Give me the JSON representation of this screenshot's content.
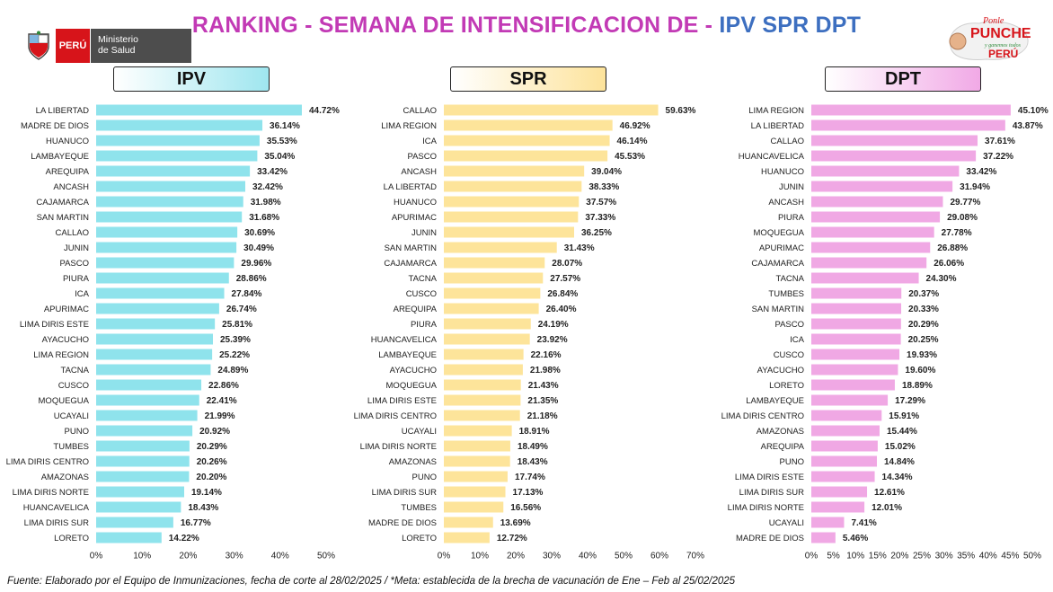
{
  "header": {
    "title_part1": "RANKING - SEMANA DE INTENSIFICACION DE - ",
    "title_part2": "IPV SPR DPT",
    "title_color1": "#c23ab5",
    "title_color2": "#3d6fc0"
  },
  "logos": {
    "peru": "PERÚ",
    "ministry_line1": "Ministerio",
    "ministry_line2": "de Salud",
    "campaign_line1": "Ponle",
    "campaign_line2": "PUNCHE",
    "campaign_line3": "y ganemos todos",
    "campaign_line4": "PERÚ"
  },
  "footer": "Fuente: Elaborado por el Equipo de Inmunizaciones, fecha de corte al 28/02/2025 / *Meta: establecida de la brecha de vacunación de Ene – Feb al 25/02/2025",
  "chart_data": [
    {
      "type": "bar",
      "orientation": "horizontal",
      "title": "IPV",
      "color": "#8fe3ec",
      "xlim": [
        0,
        50
      ],
      "ticks": [
        0,
        10,
        20,
        30,
        40,
        50
      ],
      "tick_labels": [
        "0%",
        "10%",
        "20%",
        "30%",
        "40%",
        "50%"
      ],
      "categories": [
        "LA LIBERTAD",
        "MADRE DE DIOS",
        "HUANUCO",
        "LAMBAYEQUE",
        "AREQUIPA",
        "ANCASH",
        "CAJAMARCA",
        "SAN MARTIN",
        "CALLAO",
        "JUNIN",
        "PASCO",
        "PIURA",
        "ICA",
        "APURIMAC",
        "LIMA DIRIS ESTE",
        "AYACUCHO",
        "LIMA REGION",
        "TACNA",
        "CUSCO",
        "MOQUEGUA",
        "UCAYALI",
        "PUNO",
        "TUMBES",
        "LIMA DIRIS CENTRO",
        "AMAZONAS",
        "LIMA DIRIS NORTE",
        "HUANCAVELICA",
        "LIMA DIRIS SUR",
        "LORETO"
      ],
      "values": [
        44.72,
        36.14,
        35.53,
        35.04,
        33.42,
        32.42,
        31.98,
        31.68,
        30.69,
        30.49,
        29.96,
        28.86,
        27.84,
        26.74,
        25.81,
        25.39,
        25.22,
        24.89,
        22.86,
        22.41,
        21.99,
        20.92,
        20.29,
        20.26,
        20.2,
        19.14,
        18.43,
        16.77,
        14.22
      ],
      "value_labels": [
        "44.72%",
        "36.14%",
        "35.53%",
        "35.04%",
        "33.42%",
        "32.42%",
        "31.98%",
        "31.68%",
        "30.69%",
        "30.49%",
        "29.96%",
        "28.86%",
        "27.84%",
        "26.74%",
        "25.81%",
        "25.39%",
        "25.22%",
        "24.89%",
        "22.86%",
        "22.41%",
        "21.99%",
        "20.92%",
        "20.29%",
        "20.26%",
        "20.20%",
        "19.14%",
        "18.43%",
        "16.77%",
        "14.22%"
      ]
    },
    {
      "type": "bar",
      "orientation": "horizontal",
      "title": "SPR",
      "color": "#fde49a",
      "xlim": [
        0,
        70
      ],
      "ticks": [
        0,
        10,
        20,
        30,
        40,
        50,
        60,
        70
      ],
      "tick_labels": [
        "0%",
        "10%",
        "20%",
        "30%",
        "40%",
        "50%",
        "60%",
        "70%"
      ],
      "categories": [
        "CALLAO",
        "LIMA REGION",
        "ICA",
        "PASCO",
        "ANCASH",
        "LA LIBERTAD",
        "HUANUCO",
        "APURIMAC",
        "JUNIN",
        "SAN MARTIN",
        "CAJAMARCA",
        "TACNA",
        "CUSCO",
        "AREQUIPA",
        "PIURA",
        "HUANCAVELICA",
        "LAMBAYEQUE",
        "AYACUCHO",
        "MOQUEGUA",
        "LIMA DIRIS ESTE",
        "LIMA DIRIS CENTRO",
        "UCAYALI",
        "LIMA DIRIS NORTE",
        "AMAZONAS",
        "PUNO",
        "LIMA DIRIS SUR",
        "TUMBES",
        "MADRE DE DIOS",
        "LORETO"
      ],
      "values": [
        59.63,
        46.92,
        46.14,
        45.53,
        39.04,
        38.33,
        37.57,
        37.33,
        36.25,
        31.43,
        28.07,
        27.57,
        26.84,
        26.4,
        24.19,
        23.92,
        22.16,
        21.98,
        21.43,
        21.35,
        21.18,
        18.91,
        18.49,
        18.43,
        17.74,
        17.13,
        16.56,
        13.69,
        12.72
      ],
      "value_labels": [
        "59.63%",
        "46.92%",
        "46.14%",
        "45.53%",
        "39.04%",
        "38.33%",
        "37.57%",
        "37.33%",
        "36.25%",
        "31.43%",
        "28.07%",
        "27.57%",
        "26.84%",
        "26.40%",
        "24.19%",
        "23.92%",
        "22.16%",
        "21.98%",
        "21.43%",
        "21.35%",
        "21.18%",
        "18.91%",
        "18.49%",
        "18.43%",
        "17.74%",
        "17.13%",
        "16.56%",
        "13.69%",
        "12.72%"
      ]
    },
    {
      "type": "bar",
      "orientation": "horizontal",
      "title": "DPT",
      "color": "#f0a8e4",
      "xlim": [
        0,
        50
      ],
      "ticks": [
        0,
        5,
        10,
        15,
        20,
        25,
        30,
        35,
        40,
        45,
        50
      ],
      "tick_labels": [
        "0%",
        "5%",
        "10%",
        "15%",
        "20%",
        "25%",
        "30%",
        "35%",
        "40%",
        "45%",
        "50%"
      ],
      "categories": [
        "LIMA REGION",
        "LA LIBERTAD",
        "CALLAO",
        "HUANCAVELICA",
        "HUANUCO",
        "JUNIN",
        "ANCASH",
        "PIURA",
        "MOQUEGUA",
        "APURIMAC",
        "CAJAMARCA",
        "TACNA",
        "TUMBES",
        "SAN MARTIN",
        "PASCO",
        "ICA",
        "CUSCO",
        "AYACUCHO",
        "LORETO",
        "LAMBAYEQUE",
        "LIMA DIRIS CENTRO",
        "AMAZONAS",
        "AREQUIPA",
        "PUNO",
        "LIMA DIRIS ESTE",
        "LIMA DIRIS SUR",
        "LIMA DIRIS NORTE",
        "UCAYALI",
        "MADRE DE DIOS"
      ],
      "values": [
        45.1,
        43.87,
        37.61,
        37.22,
        33.42,
        31.94,
        29.77,
        29.08,
        27.78,
        26.88,
        26.06,
        24.3,
        20.37,
        20.33,
        20.29,
        20.25,
        19.93,
        19.6,
        18.89,
        17.29,
        15.91,
        15.44,
        15.02,
        14.84,
        14.34,
        12.61,
        12.01,
        7.41,
        5.46
      ],
      "value_labels": [
        "45.10%",
        "43.87%",
        "37.61%",
        "37.22%",
        "33.42%",
        "31.94%",
        "29.77%",
        "29.08%",
        "27.78%",
        "26.88%",
        "26.06%",
        "24.30%",
        "20.37%",
        "20.33%",
        "20.29%",
        "20.25%",
        "19.93%",
        "19.60%",
        "18.89%",
        "17.29%",
        "15.91%",
        "15.44%",
        "15.02%",
        "14.84%",
        "14.34%",
        "12.61%",
        "12.01%",
        "7.41%",
        "5.46%"
      ]
    }
  ]
}
